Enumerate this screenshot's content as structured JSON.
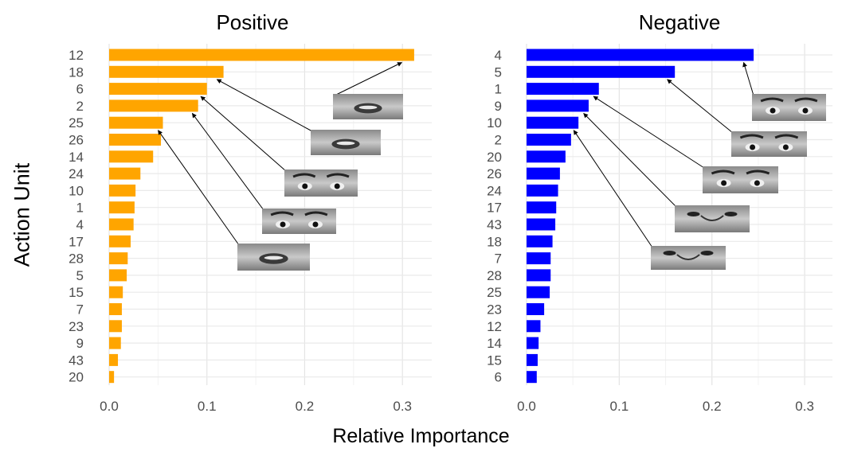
{
  "figure": {
    "ylabel": "Action Unit",
    "xlabel": "Relative Importance"
  },
  "chart_data": [
    {
      "type": "bar",
      "orientation": "horizontal",
      "title": "Positive",
      "color": "#FFA500",
      "categories": [
        "12",
        "18",
        "6",
        "2",
        "25",
        "26",
        "14",
        "24",
        "10",
        "1",
        "4",
        "17",
        "28",
        "5",
        "15",
        "7",
        "23",
        "9",
        "43",
        "20"
      ],
      "values": [
        0.312,
        0.117,
        0.1,
        0.091,
        0.055,
        0.053,
        0.045,
        0.032,
        0.027,
        0.026,
        0.025,
        0.022,
        0.019,
        0.018,
        0.014,
        0.013,
        0.013,
        0.012,
        0.009,
        0.005
      ],
      "xlim": [
        0,
        0.33
      ],
      "xticks": [
        "0.0",
        "0.1",
        "0.2",
        "0.3"
      ],
      "xtick_values": [
        0,
        0.1,
        0.2,
        0.3
      ],
      "grid": true,
      "annotations": [
        {
          "category": "12",
          "image": "face-mouth-smile"
        },
        {
          "category": "18",
          "image": "face-lips-pucker"
        },
        {
          "category": "6",
          "image": "face-eyes-cheek-raise"
        },
        {
          "category": "2",
          "image": "face-brow-raise"
        },
        {
          "category": "25",
          "image": "face-lips-part"
        }
      ]
    },
    {
      "type": "bar",
      "orientation": "horizontal",
      "title": "Negative",
      "color": "#0000FF",
      "categories": [
        "4",
        "5",
        "1",
        "9",
        "10",
        "2",
        "20",
        "26",
        "24",
        "17",
        "43",
        "18",
        "7",
        "28",
        "25",
        "23",
        "12",
        "14",
        "15",
        "6"
      ],
      "values": [
        0.245,
        0.16,
        0.078,
        0.067,
        0.056,
        0.048,
        0.042,
        0.036,
        0.034,
        0.032,
        0.031,
        0.028,
        0.026,
        0.026,
        0.025,
        0.019,
        0.015,
        0.013,
        0.012,
        0.011
      ],
      "xlim": [
        0,
        0.33
      ],
      "xticks": [
        "0.0",
        "0.1",
        "0.2",
        "0.3"
      ],
      "xtick_values": [
        0,
        0.1,
        0.2,
        0.3
      ],
      "grid": true,
      "annotations": [
        {
          "category": "4",
          "image": "face-brow-lower"
        },
        {
          "category": "5",
          "image": "face-upper-lid-raise"
        },
        {
          "category": "1",
          "image": "face-inner-brow-raise"
        },
        {
          "category": "9",
          "image": "face-nose-wrinkle"
        },
        {
          "category": "10",
          "image": "face-upper-lip-raise"
        }
      ]
    }
  ]
}
